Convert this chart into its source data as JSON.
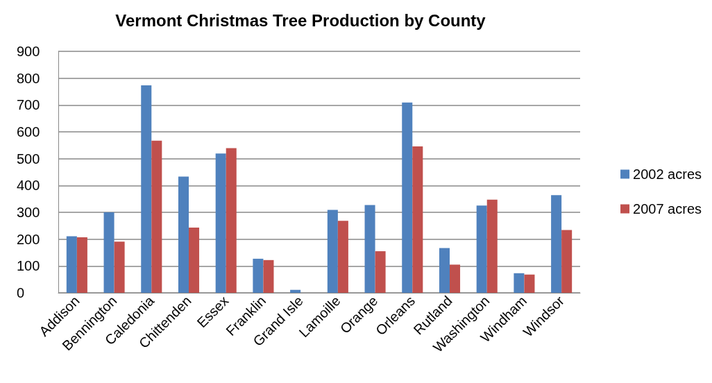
{
  "chart_data": {
    "type": "bar",
    "title": "Vermont Christmas Tree Production by County",
    "categories": [
      "Addison",
      "Bennington",
      "Caledonia",
      "Chittenden",
      "Essex",
      "Franklin",
      "Grand Isle",
      "Lamoille",
      "Orange",
      "Orleans",
      "Rutland",
      "Washington",
      "Windham",
      "Windsor"
    ],
    "series": [
      {
        "name": "2002 acres",
        "color": "#4f81bd",
        "values": [
          211,
          300,
          773,
          433,
          519,
          127,
          11,
          309,
          327,
          709,
          167,
          325,
          73,
          364
        ]
      },
      {
        "name": "2007 acres",
        "color": "#c0504d",
        "values": [
          207,
          191,
          567,
          243,
          539,
          122,
          null,
          268,
          155,
          546,
          105,
          347,
          68,
          234
        ]
      }
    ],
    "ylim": [
      0,
      900
    ],
    "yticks": [
      0,
      100,
      200,
      300,
      400,
      500,
      600,
      700,
      800,
      900
    ],
    "grid": "y",
    "legend": "right"
  }
}
